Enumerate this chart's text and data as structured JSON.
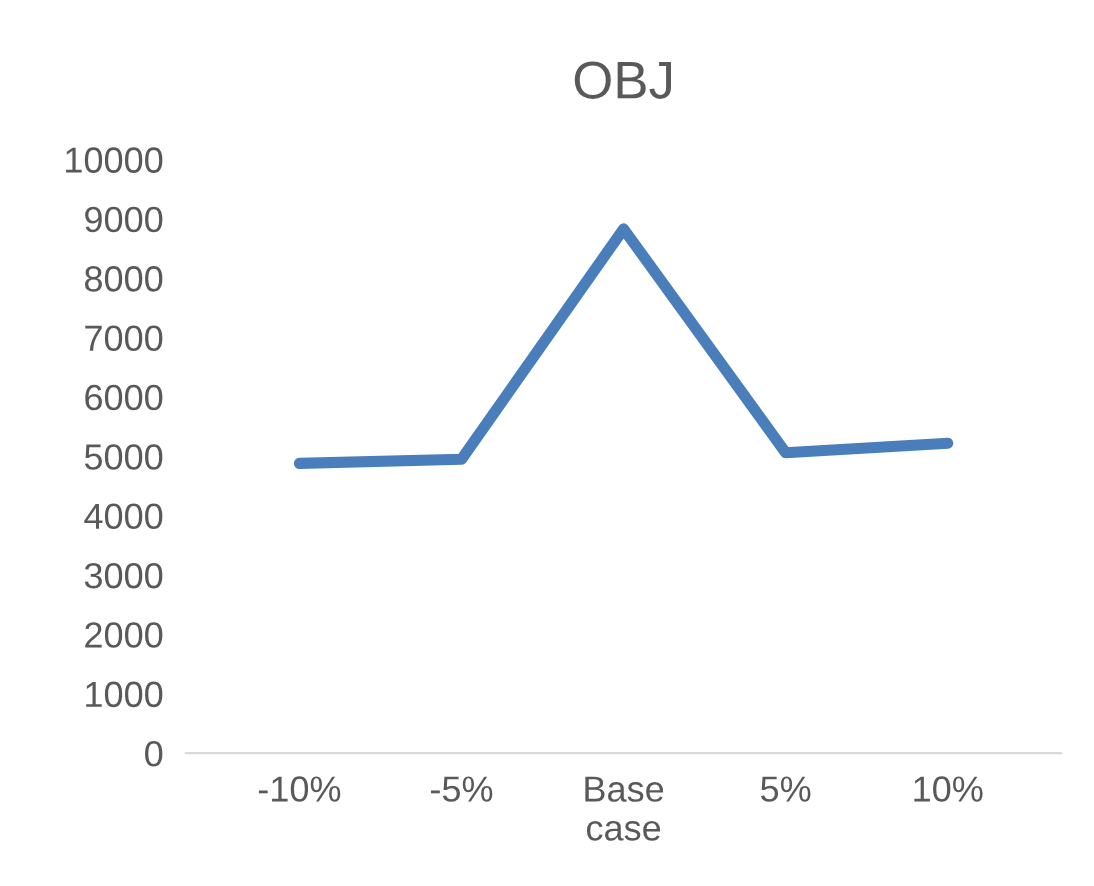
{
  "chart_data": {
    "type": "line",
    "title": "OBJ",
    "categories": [
      "-10%",
      "-5%",
      "Base\ncase",
      "5%",
      "10%"
    ],
    "series": [
      {
        "color": "#4a7ebb",
        "values": [
          4880,
          4950,
          8830,
          5060,
          5220
        ]
      }
    ],
    "ylim": [
      0,
      10000
    ],
    "yticks": [
      0,
      1000,
      2000,
      3000,
      4000,
      5000,
      6000,
      7000,
      8000,
      9000,
      10000
    ],
    "grid": false,
    "legend": false,
    "marker": "none",
    "line_style": "solid"
  }
}
